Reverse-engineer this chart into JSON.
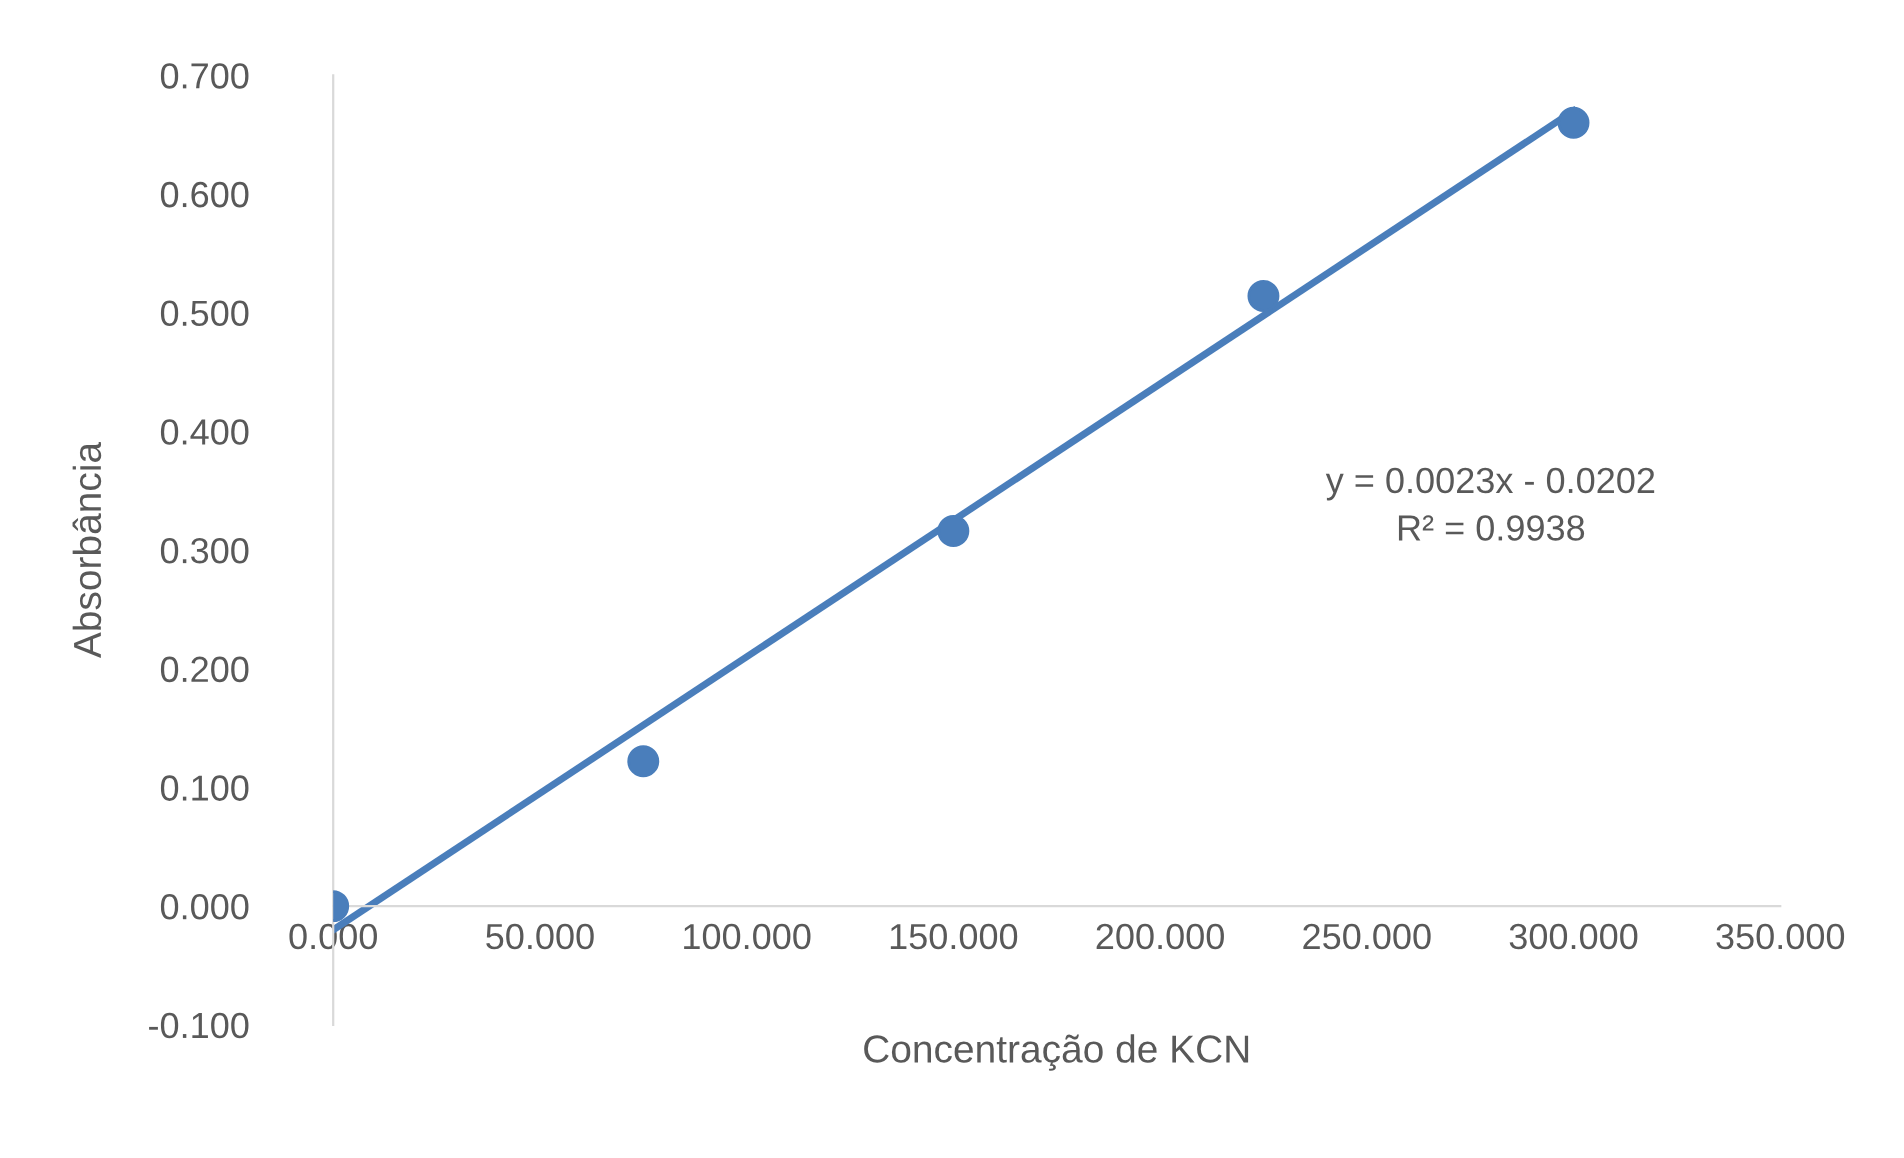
{
  "chart_data": {
    "type": "scatter",
    "xlabel": "Concentração de KCN",
    "ylabel": "Absorbância",
    "xlim": [
      0,
      350
    ],
    "ylim": [
      -0.1,
      0.7
    ],
    "xticks": [
      {
        "value": 0,
        "label": "0.000"
      },
      {
        "value": 50,
        "label": "50.000"
      },
      {
        "value": 100,
        "label": "100.000"
      },
      {
        "value": 150,
        "label": "150.000"
      },
      {
        "value": 200,
        "label": "200.000"
      },
      {
        "value": 250,
        "label": "250.000"
      },
      {
        "value": 300,
        "label": "300.000"
      },
      {
        "value": 350,
        "label": "350.000"
      }
    ],
    "yticks": [
      {
        "value": -0.1,
        "label": "-0.100"
      },
      {
        "value": 0,
        "label": "0.000"
      },
      {
        "value": 0.1,
        "label": "0.100"
      },
      {
        "value": 0.2,
        "label": "0.200"
      },
      {
        "value": 0.3,
        "label": "0.300"
      },
      {
        "value": 0.4,
        "label": "0.400"
      },
      {
        "value": 0.5,
        "label": "0.500"
      },
      {
        "value": 0.6,
        "label": "0.600"
      },
      {
        "value": 0.7,
        "label": "0.700"
      }
    ],
    "grid": false,
    "legend": false,
    "series": [
      {
        "color": "#4a7ebb",
        "marker": "circle",
        "x": [
          0,
          75,
          150,
          225,
          300
        ],
        "values": [
          0.0,
          0.122,
          0.316,
          0.514,
          0.66
        ]
      },
      {
        "type": "line",
        "color": "#4a7ebb",
        "line_style": "solid",
        "marker": "none",
        "x": [
          0,
          300
        ],
        "values": [
          -0.02,
          0.67
        ]
      }
    ],
    "annotations": [
      "y = 0.0023x - 0.0202",
      "R² = 0.9938"
    ]
  }
}
